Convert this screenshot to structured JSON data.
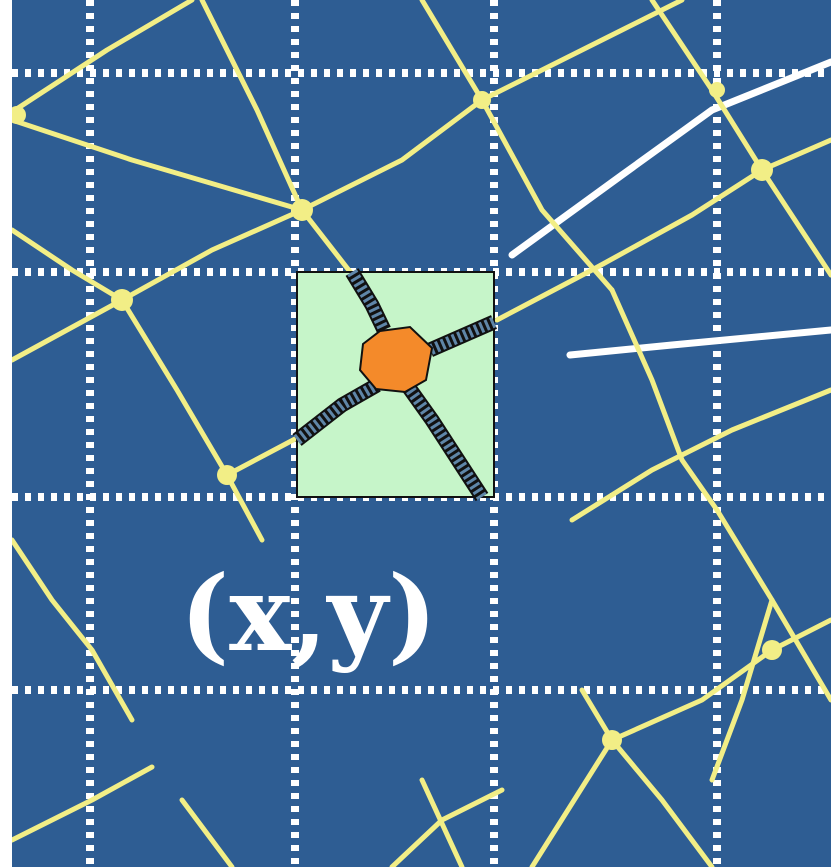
{
  "colors": {
    "background": "#2e5d93",
    "road": "#f2ee86",
    "grid": "#ffffff",
    "inset_fill": "#c6f5c9",
    "inset_border": "#111111",
    "node": "#f48a2a"
  },
  "label": {
    "coordinate": "(x,y)"
  },
  "icons": {
    "node": "orange-node-icon"
  }
}
